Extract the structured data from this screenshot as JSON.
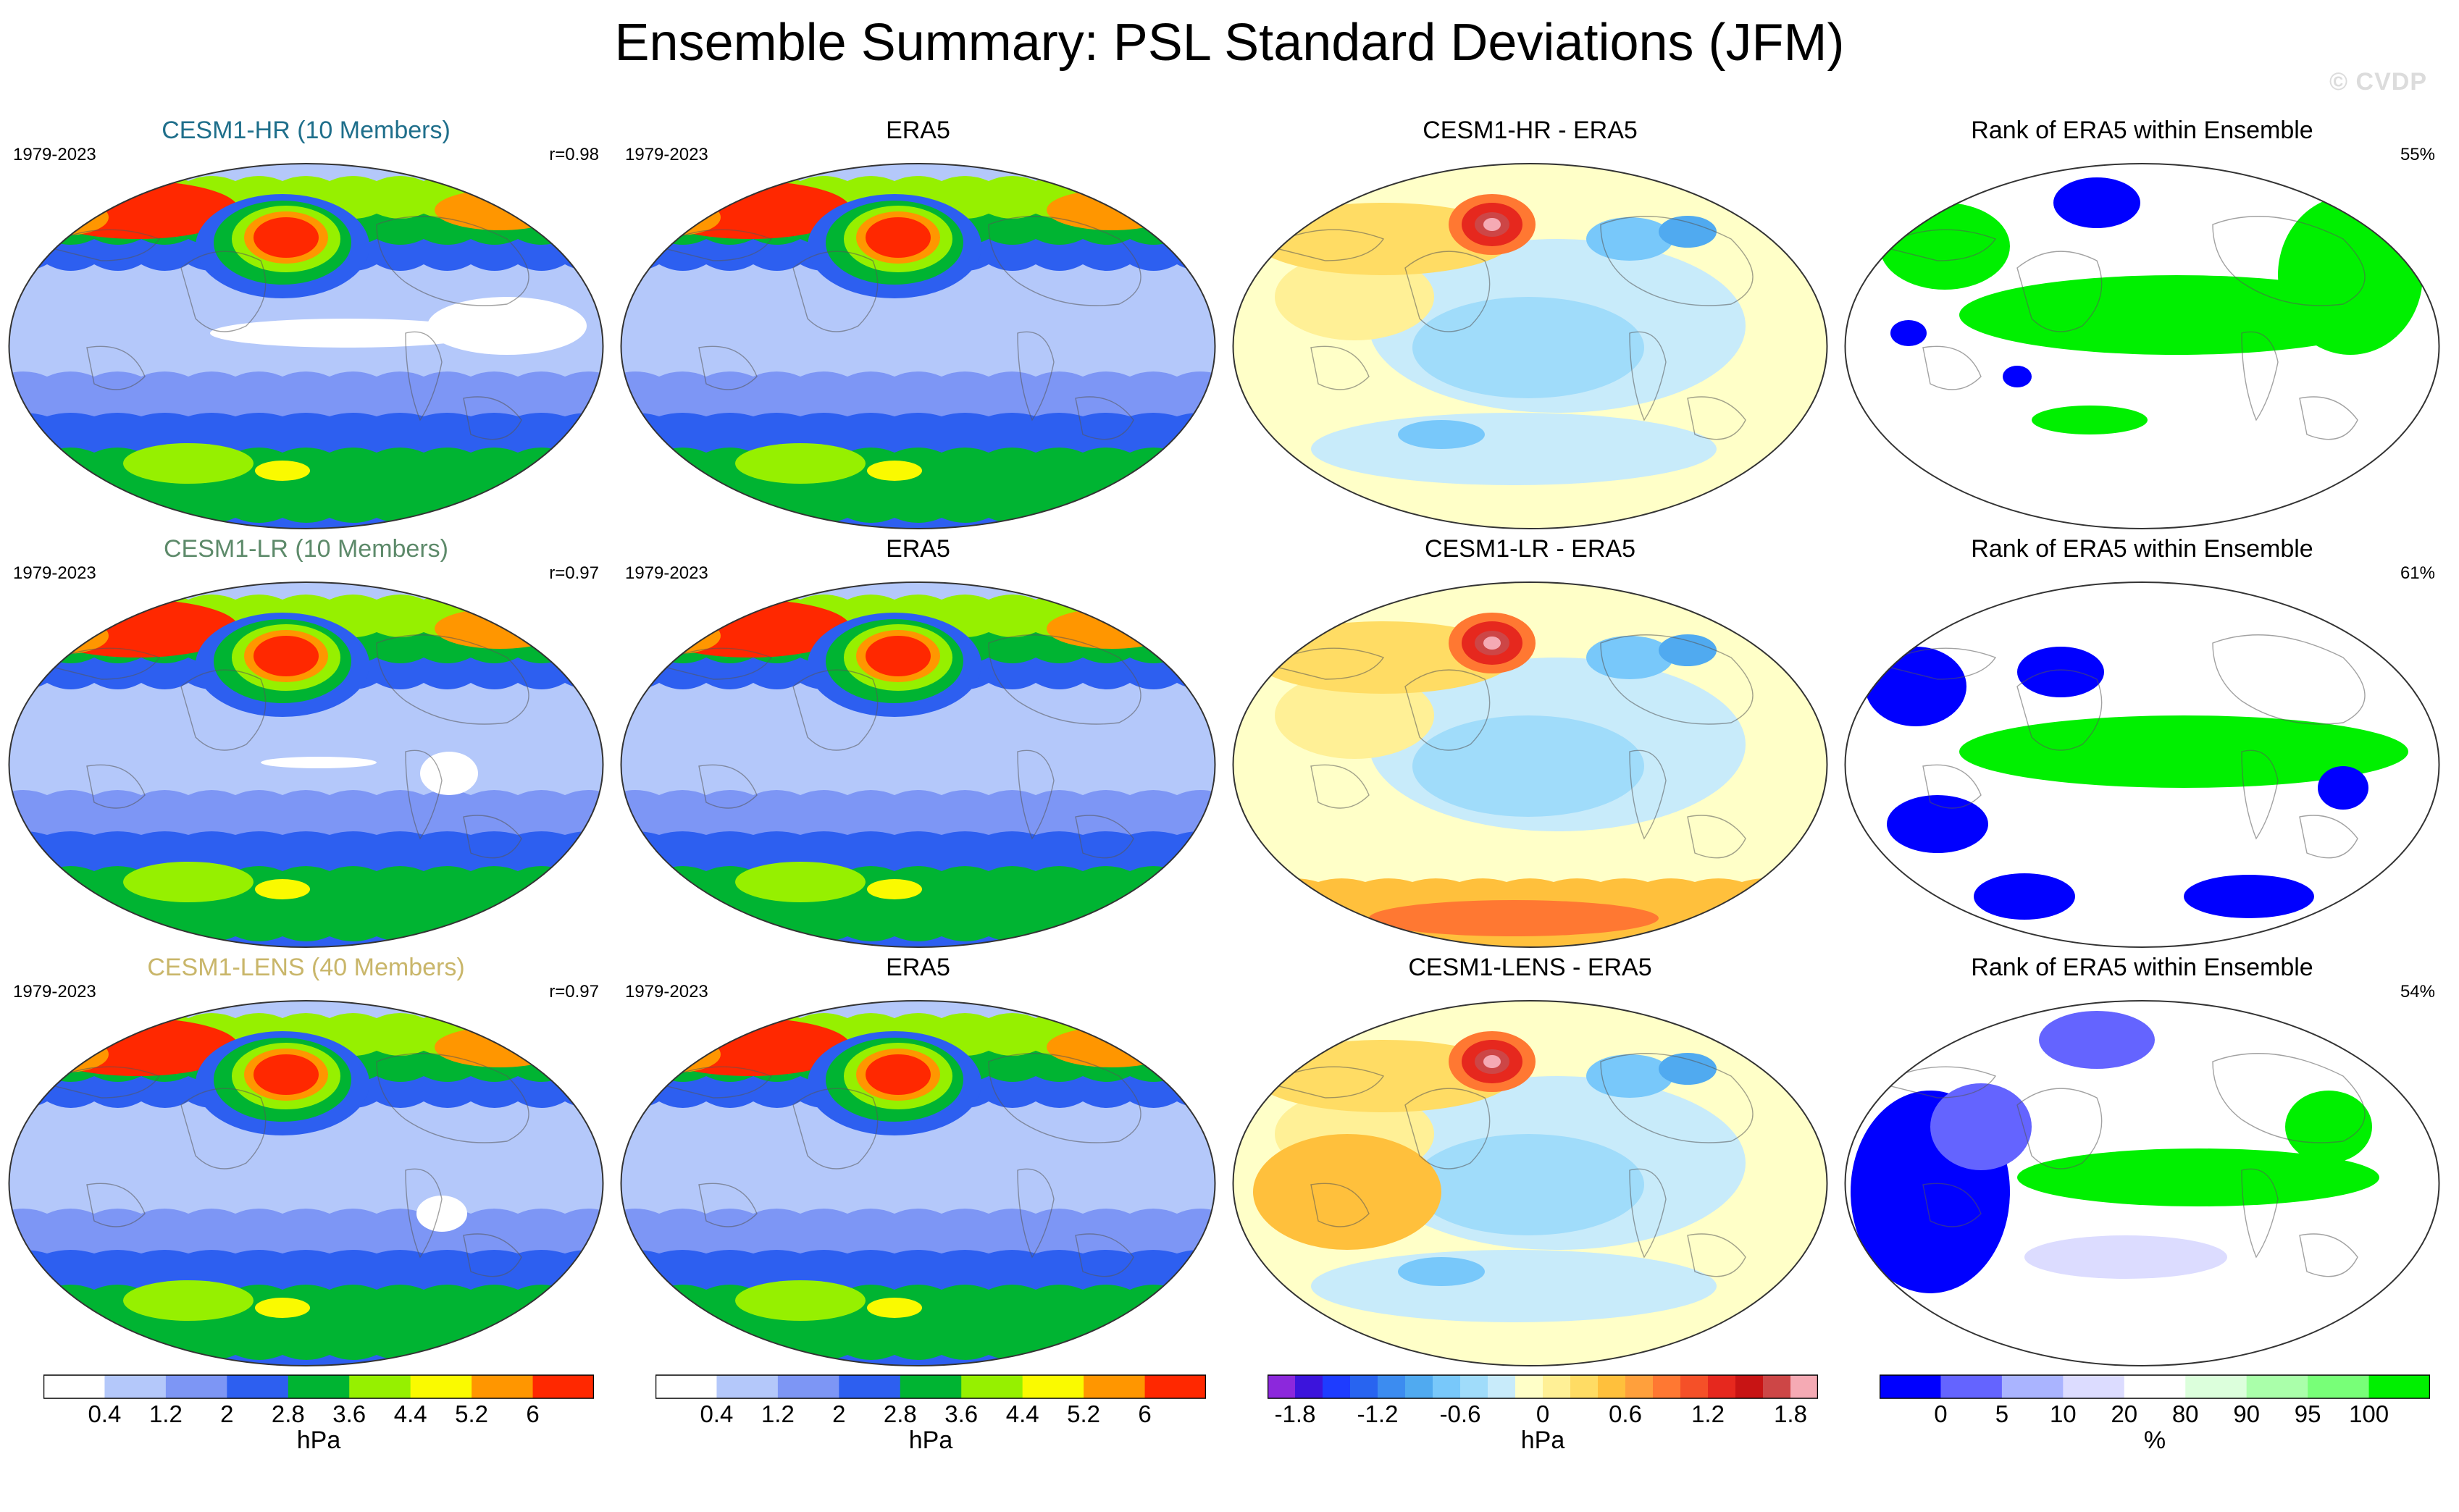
{
  "title": "Ensemble Summary: PSL Standard Deviations (JFM)",
  "watermark": "© CVDP",
  "panels": [
    [
      {
        "kind": "model",
        "title": "CESM1-HR (10 Members)",
        "title_color": "#1f6f8b",
        "years": "1979-2023",
        "stat": "r=0.98"
      },
      {
        "kind": "model",
        "title": "ERA5",
        "title_color": "#000000",
        "years": "1979-2023",
        "stat": ""
      },
      {
        "kind": "diff",
        "title": "CESM1-HR - ERA5",
        "title_color": "#000000",
        "years": "",
        "stat": ""
      },
      {
        "kind": "rank",
        "title": "Rank of ERA5 within Ensemble",
        "title_color": "#000000",
        "years": "",
        "stat": "55%"
      }
    ],
    [
      {
        "kind": "model",
        "title": "CESM1-LR (10 Members)",
        "title_color": "#5d8a6a",
        "years": "1979-2023",
        "stat": "r=0.97"
      },
      {
        "kind": "model",
        "title": "ERA5",
        "title_color": "#000000",
        "years": "1979-2023",
        "stat": ""
      },
      {
        "kind": "diff",
        "title": "CESM1-LR - ERA5",
        "title_color": "#000000",
        "years": "",
        "stat": ""
      },
      {
        "kind": "rank",
        "title": "Rank of ERA5 within Ensemble",
        "title_color": "#000000",
        "years": "",
        "stat": "61%"
      }
    ],
    [
      {
        "kind": "model",
        "title": "CESM1-LENS (40 Members)",
        "title_color": "#c9b66a",
        "years": "1979-2023",
        "stat": "r=0.97"
      },
      {
        "kind": "model",
        "title": "ERA5",
        "title_color": "#000000",
        "years": "1979-2023",
        "stat": ""
      },
      {
        "kind": "diff",
        "title": "CESM1-LENS - ERA5",
        "title_color": "#000000",
        "years": "",
        "stat": ""
      },
      {
        "kind": "rank",
        "title": "Rank of ERA5 within Ensemble",
        "title_color": "#000000",
        "years": "",
        "stat": "54%"
      }
    ]
  ],
  "chart_data": {
    "type": "heatmap",
    "title": "Ensemble Summary: PSL Standard Deviations (JFM)",
    "projection": "global map",
    "colorbars": [
      {
        "id": "std",
        "units": "hPa",
        "ticks": [
          "0.4",
          "1.2",
          "2",
          "2.8",
          "3.6",
          "4.4",
          "5.2",
          "6"
        ],
        "colors": [
          "#ffffff",
          "#b4c8fa",
          "#7d96f5",
          "#2d5ff0",
          "#00b432",
          "#96f000",
          "#fafa00",
          "#ff9600",
          "#ff2800"
        ]
      },
      {
        "id": "std2",
        "units": "hPa",
        "ticks": [
          "0.4",
          "1.2",
          "2",
          "2.8",
          "3.6",
          "4.4",
          "5.2",
          "6"
        ],
        "colors": [
          "#ffffff",
          "#b4c8fa",
          "#7d96f5",
          "#2d5ff0",
          "#00b432",
          "#96f000",
          "#fafa00",
          "#ff9600",
          "#ff2800"
        ]
      },
      {
        "id": "diff",
        "units": "hPa",
        "ticks": [
          "-1.8",
          "-1.2",
          "-0.6",
          "0",
          "0.6",
          "1.2",
          "1.8"
        ],
        "colors": [
          "#8c28dc",
          "#3c14dc",
          "#1e3cff",
          "#2864f0",
          "#3c8cf0",
          "#50aaf0",
          "#78c8fa",
          "#a0dcfa",
          "#c8ebfa",
          "#ffffc8",
          "#fff096",
          "#ffdc64",
          "#ffc03c",
          "#ffa03c",
          "#ff7832",
          "#f55028",
          "#e6281e",
          "#c81414",
          "#cd4646",
          "#f5aab4"
        ]
      },
      {
        "id": "rank",
        "units": "%",
        "ticks": [
          "0",
          "5",
          "10",
          "20",
          "80",
          "90",
          "95",
          "100"
        ],
        "colors": [
          "#0000ff",
          "#6464ff",
          "#aab4ff",
          "#dcdcff",
          "#ffffff",
          "#dcffdc",
          "#aaffaa",
          "#78ff78",
          "#00f000"
        ]
      }
    ]
  }
}
